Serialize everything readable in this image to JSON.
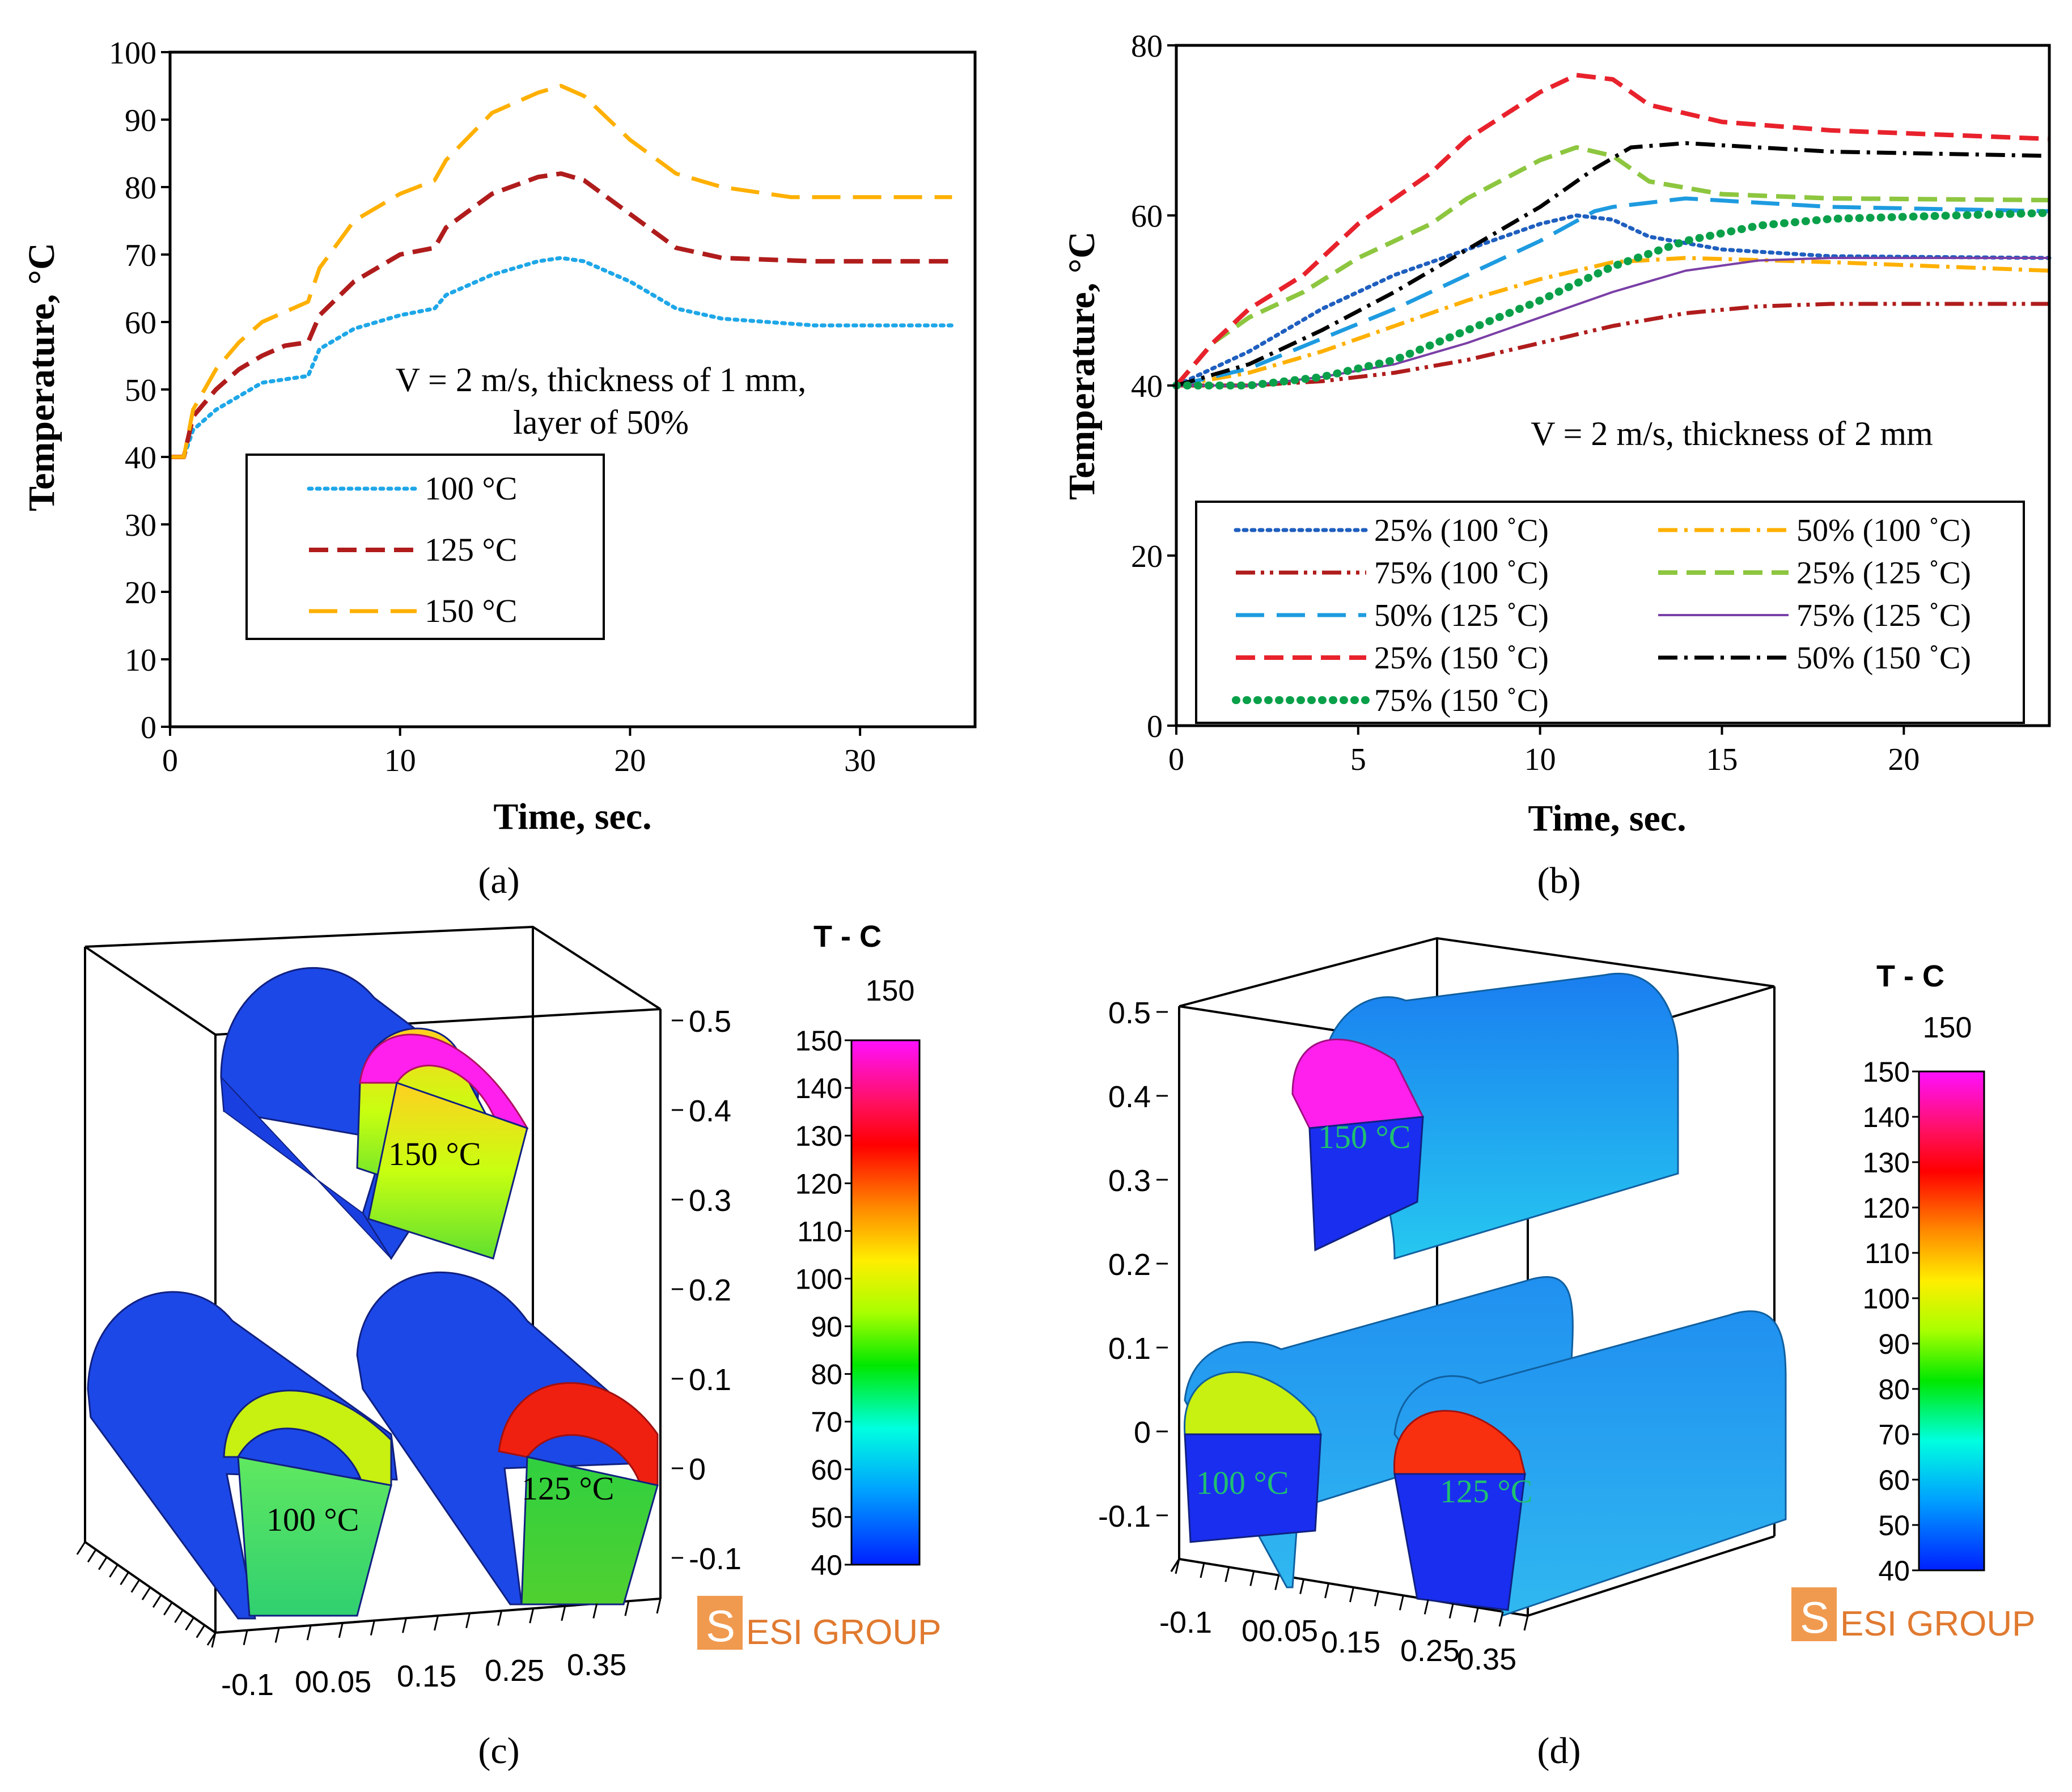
{
  "figure": {
    "panel_labels": [
      "(a)",
      "(b)",
      "(c)",
      "(d)"
    ]
  },
  "chart_data": [
    {
      "id": "a",
      "type": "line",
      "title": "",
      "xlabel": "Time, sec.",
      "ylabel": "Temperature, °C",
      "xlim": [
        0,
        35
      ],
      "ylim": [
        0,
        100
      ],
      "xticks": [
        0,
        10,
        20,
        30
      ],
      "yticks": [
        0,
        10,
        20,
        30,
        40,
        50,
        60,
        70,
        80,
        90,
        100
      ],
      "annotation": [
        "V = 2 m/s, thickness of 1 mm,",
        "layer of 50%"
      ],
      "legend_position": "center-left",
      "series": [
        {
          "name": "100 °C",
          "color": "#1ea7e8",
          "style": "dotted",
          "points": [
            [
              0,
              40
            ],
            [
              0.6,
              40
            ],
            [
              1,
              44
            ],
            [
              2,
              47
            ],
            [
              3,
              49
            ],
            [
              4,
              51
            ],
            [
              5,
              51.5
            ],
            [
              6,
              52
            ],
            [
              6.5,
              56
            ],
            [
              8,
              59
            ],
            [
              10,
              61
            ],
            [
              11.5,
              62
            ],
            [
              12,
              64
            ],
            [
              14,
              67
            ],
            [
              16,
              69
            ],
            [
              17,
              69.5
            ],
            [
              18,
              69
            ],
            [
              20,
              66
            ],
            [
              22,
              62
            ],
            [
              24,
              60.5
            ],
            [
              28,
              59.5
            ],
            [
              34,
              59.5
            ]
          ]
        },
        {
          "name": "125 °C",
          "color": "#b01c1c",
          "style": "dashed",
          "points": [
            [
              0,
              40
            ],
            [
              0.6,
              40
            ],
            [
              1,
              46
            ],
            [
              2,
              50
            ],
            [
              3,
              53
            ],
            [
              4,
              55
            ],
            [
              5,
              56.5
            ],
            [
              6,
              57
            ],
            [
              6.5,
              61
            ],
            [
              8,
              66
            ],
            [
              10,
              70
            ],
            [
              11.5,
              71
            ],
            [
              12,
              74
            ],
            [
              14,
              79
            ],
            [
              16,
              81.5
            ],
            [
              17,
              82
            ],
            [
              18,
              81
            ],
            [
              20,
              76
            ],
            [
              22,
              71
            ],
            [
              24,
              69.5
            ],
            [
              28,
              69
            ],
            [
              34,
              69
            ]
          ]
        },
        {
          "name": "150 °C",
          "color": "#ffb000",
          "style": "longdash",
          "points": [
            [
              0,
              40
            ],
            [
              0.6,
              40
            ],
            [
              1,
              47
            ],
            [
              2,
              53
            ],
            [
              3,
              57
            ],
            [
              4,
              60
            ],
            [
              5,
              61.5
            ],
            [
              6,
              63
            ],
            [
              6.5,
              68
            ],
            [
              8,
              75
            ],
            [
              10,
              79
            ],
            [
              11.5,
              81
            ],
            [
              12,
              84
            ],
            [
              14,
              91
            ],
            [
              16,
              94
            ],
            [
              17,
              95
            ],
            [
              18,
              93.5
            ],
            [
              20,
              87
            ],
            [
              22,
              82
            ],
            [
              24,
              80
            ],
            [
              27,
              78.5
            ],
            [
              34,
              78.5
            ]
          ]
        }
      ]
    },
    {
      "id": "b",
      "type": "line",
      "title": "",
      "xlabel": "Time, sec.",
      "ylabel": "Temperature, °C",
      "xlim": [
        0,
        24
      ],
      "ylim": [
        0,
        80
      ],
      "xticks": [
        0,
        5,
        10,
        15,
        20
      ],
      "yticks": [
        0,
        20,
        40,
        60,
        80
      ],
      "annotation": [
        "V = 2 m/s, thickness of 2 mm"
      ],
      "legend_position": "bottom",
      "series": [
        {
          "name": "25% (100 ˚C)",
          "color": "#1f5fbf",
          "style": "dotted",
          "points": [
            [
              0,
              40
            ],
            [
              2,
              44
            ],
            [
              4,
              49
            ],
            [
              6,
              53
            ],
            [
              8,
              56
            ],
            [
              10,
              59
            ],
            [
              11,
              60
            ],
            [
              12,
              59.5
            ],
            [
              13,
              57.5
            ],
            [
              15,
              56
            ],
            [
              18,
              55.2
            ],
            [
              24,
              55
            ]
          ]
        },
        {
          "name": "50% (100 ˚C)",
          "color": "#ffb000",
          "style": "dashdot",
          "points": [
            [
              0,
              40
            ],
            [
              2,
              41.5
            ],
            [
              4,
              44
            ],
            [
              6,
              47
            ],
            [
              8,
              50
            ],
            [
              10,
              52.5
            ],
            [
              12,
              54.5
            ],
            [
              14,
              55
            ],
            [
              18,
              54.5
            ],
            [
              24,
              53.5
            ]
          ]
        },
        {
          "name": "75% (100 ˚C)",
          "color": "#b01c1c",
          "style": "dashdotdot",
          "points": [
            [
              0,
              40
            ],
            [
              2,
              40
            ],
            [
              4,
              40.5
            ],
            [
              6,
              41.5
            ],
            [
              8,
              43
            ],
            [
              10,
              45
            ],
            [
              12,
              47
            ],
            [
              14,
              48.5
            ],
            [
              16,
              49.3
            ],
            [
              18,
              49.6
            ],
            [
              24,
              49.6
            ]
          ]
        },
        {
          "name": "25% (125 ˚C)",
          "color": "#8dc63f",
          "style": "dashed",
          "points": [
            [
              0,
              40
            ],
            [
              1,
              45
            ],
            [
              2,
              48
            ],
            [
              3.5,
              51
            ],
            [
              5,
              55
            ],
            [
              7,
              59
            ],
            [
              8,
              62
            ],
            [
              10,
              66.5
            ],
            [
              11,
              68
            ],
            [
              12,
              67
            ],
            [
              13,
              64
            ],
            [
              15,
              62.5
            ],
            [
              18,
              62
            ],
            [
              24,
              61.8
            ]
          ]
        },
        {
          "name": "50% (125 ˚C)",
          "color": "#1e9be0",
          "style": "longdash",
          "points": [
            [
              0,
              40
            ],
            [
              2,
              42
            ],
            [
              4,
              45.5
            ],
            [
              6,
              49
            ],
            [
              8,
              53
            ],
            [
              10,
              57
            ],
            [
              11.5,
              60.5
            ],
            [
              12,
              61
            ],
            [
              13,
              61.5
            ],
            [
              14,
              62
            ],
            [
              18,
              61
            ],
            [
              24,
              60.5
            ]
          ]
        },
        {
          "name": "75% (125 ˚C)",
          "color": "#7a3fa6",
          "style": "solid",
          "points": [
            [
              0,
              40
            ],
            [
              2,
              40
            ],
            [
              4,
              41
            ],
            [
              6,
              42.5
            ],
            [
              8,
              45
            ],
            [
              10,
              48
            ],
            [
              12,
              51
            ],
            [
              14,
              53.5
            ],
            [
              16,
              54.7
            ],
            [
              18,
              55
            ],
            [
              24,
              55
            ]
          ]
        },
        {
          "name": "25% (150 ˚C)",
          "color": "#e8222c",
          "style": "dashed",
          "points": [
            [
              0,
              40
            ],
            [
              1,
              45
            ],
            [
              2,
              49
            ],
            [
              3.5,
              53
            ],
            [
              5,
              59
            ],
            [
              7,
              65
            ],
            [
              8,
              69
            ],
            [
              10,
              74.5
            ],
            [
              11,
              76.5
            ],
            [
              12,
              76
            ],
            [
              13,
              73
            ],
            [
              15,
              71
            ],
            [
              18,
              70
            ],
            [
              24,
              69
            ]
          ]
        },
        {
          "name": "50% (150 ˚C)",
          "color": "#000000",
          "style": "dashdot",
          "points": [
            [
              0,
              40
            ],
            [
              2,
              42.5
            ],
            [
              4,
              46.5
            ],
            [
              6,
              51
            ],
            [
              8,
              56
            ],
            [
              10,
              61
            ],
            [
              11.5,
              65.5
            ],
            [
              12.5,
              68
            ],
            [
              14,
              68.5
            ],
            [
              18,
              67.5
            ],
            [
              24,
              67
            ]
          ]
        },
        {
          "name": "75% (150 ˚C)",
          "color": "#0aa04a",
          "style": "bigdot",
          "points": [
            [
              0,
              40
            ],
            [
              2,
              40
            ],
            [
              4,
              41
            ],
            [
              6,
              43
            ],
            [
              8,
              46.5
            ],
            [
              10,
              50
            ],
            [
              12,
              54
            ],
            [
              14,
              57
            ],
            [
              16,
              58.8
            ],
            [
              18,
              59.6
            ],
            [
              24,
              60.3
            ]
          ]
        }
      ]
    },
    {
      "id": "c",
      "type": "other",
      "title": "T - C",
      "colorbar_max_label": "150",
      "colorbar_ticks": [
        "150",
        "140",
        "130",
        "120",
        "110",
        "100",
        "90",
        "80",
        "70",
        "60",
        "50",
        "40"
      ],
      "z_axis_ticks": [
        "0.5",
        "0.4",
        "0.3",
        "0.2",
        "0.1",
        "0",
        "-0.1"
      ],
      "x_axis_ticks": [
        "-0.1",
        "00.05",
        "0.15",
        "0.25",
        "0.35"
      ],
      "shape_labels": [
        "150 °C",
        "100 °C",
        "125 °C"
      ],
      "logo": "ESI GROUP"
    },
    {
      "id": "d",
      "type": "other",
      "title": "T - C",
      "colorbar_max_label": "150",
      "colorbar_ticks": [
        "150",
        "140",
        "130",
        "120",
        "110",
        "100",
        "90",
        "80",
        "70",
        "60",
        "50",
        "40"
      ],
      "z_axis_ticks": [
        "0.5",
        "0.4",
        "0.3",
        "0.2",
        "0.1",
        "0",
        "-0.1"
      ],
      "x_axis_ticks": [
        "-0.1",
        "00.05",
        "0.15",
        "0.25",
        "0.35"
      ],
      "shape_labels": [
        "150 °C",
        "100 °C",
        "125 °C"
      ],
      "logo": "ESI GROUP"
    }
  ]
}
